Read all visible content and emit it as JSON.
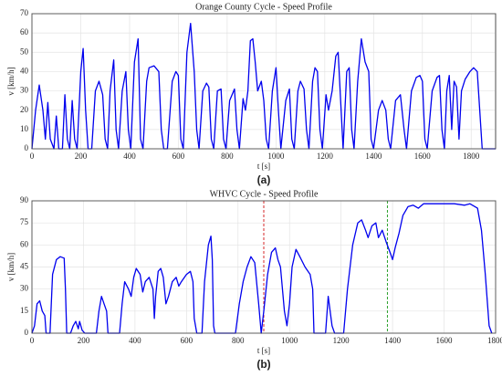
{
  "chart_data": [
    {
      "type": "line",
      "title": "Orange County Cycle - Speed Profile",
      "x_label": "t [s]",
      "y_label": "v [km/h]",
      "caption": "(a)",
      "xlim": [
        0,
        1900
      ],
      "xticks": [
        0,
        200,
        400,
        600,
        800,
        1000,
        1200,
        1400,
        1600,
        1800
      ],
      "ylim": [
        0,
        70
      ],
      "yticks": [
        0,
        10,
        20,
        30,
        40,
        50,
        60,
        70
      ],
      "grid": true,
      "x": [
        0,
        15,
        30,
        45,
        55,
        65,
        75,
        90,
        100,
        110,
        125,
        135,
        145,
        155,
        165,
        175,
        185,
        200,
        210,
        220,
        230,
        245,
        260,
        275,
        290,
        300,
        310,
        320,
        335,
        345,
        355,
        370,
        385,
        395,
        405,
        420,
        435,
        445,
        455,
        470,
        480,
        500,
        520,
        530,
        540,
        555,
        575,
        590,
        600,
        610,
        620,
        635,
        650,
        665,
        675,
        685,
        700,
        715,
        725,
        735,
        745,
        760,
        775,
        785,
        795,
        810,
        830,
        840,
        850,
        865,
        875,
        885,
        895,
        905,
        915,
        925,
        940,
        950,
        960,
        970,
        985,
        1000,
        1010,
        1020,
        1040,
        1055,
        1065,
        1075,
        1090,
        1100,
        1115,
        1125,
        1135,
        1150,
        1160,
        1170,
        1180,
        1190,
        1205,
        1215,
        1230,
        1245,
        1255,
        1265,
        1275,
        1290,
        1300,
        1310,
        1320,
        1335,
        1350,
        1365,
        1380,
        1390,
        1400,
        1420,
        1435,
        1450,
        1460,
        1470,
        1490,
        1510,
        1525,
        1535,
        1555,
        1575,
        1590,
        1600,
        1610,
        1620,
        1640,
        1660,
        1670,
        1680,
        1690,
        1700,
        1710,
        1720,
        1730,
        1740,
        1750,
        1760,
        1775,
        1795,
        1810,
        1825,
        1835,
        1845,
        1900
      ],
      "series": [
        {
          "name": "Orange County",
          "color": "#0000ee",
          "values": [
            0,
            20,
            33,
            20,
            5,
            24,
            5,
            0,
            17,
            0,
            0,
            28,
            5,
            0,
            25,
            5,
            0,
            40,
            52,
            20,
            0,
            0,
            30,
            35,
            28,
            5,
            0,
            30,
            46,
            10,
            0,
            30,
            40,
            10,
            0,
            45,
            57,
            5,
            0,
            35,
            42,
            43,
            40,
            10,
            0,
            0,
            35,
            40,
            38,
            5,
            0,
            50,
            65,
            40,
            10,
            0,
            30,
            34,
            32,
            5,
            0,
            30,
            31,
            5,
            0,
            25,
            31,
            10,
            0,
            26,
            20,
            30,
            56,
            57,
            45,
            30,
            35,
            25,
            5,
            0,
            30,
            42,
            20,
            0,
            25,
            31,
            5,
            0,
            30,
            35,
            31,
            10,
            0,
            35,
            42,
            40,
            10,
            0,
            28,
            20,
            30,
            48,
            50,
            25,
            0,
            40,
            42,
            10,
            0,
            35,
            57,
            45,
            40,
            5,
            0,
            20,
            25,
            20,
            5,
            0,
            25,
            28,
            10,
            0,
            30,
            37,
            38,
            35,
            5,
            0,
            30,
            37,
            38,
            10,
            0,
            30,
            38,
            10,
            35,
            32,
            5,
            30,
            36,
            40,
            42,
            40,
            20,
            0,
            0
          ]
        }
      ]
    },
    {
      "type": "line",
      "title": "WHVC Cycle - Speed Profile",
      "x_label": "t [s]",
      "y_label": "v [km/h]",
      "caption": "(b)",
      "xlim": [
        0,
        1800
      ],
      "xticks": [
        0,
        200,
        400,
        600,
        800,
        1000,
        1200,
        1400,
        1600,
        1800
      ],
      "ylim": [
        0,
        90
      ],
      "yticks": [
        0,
        15,
        30,
        45,
        60,
        75,
        90
      ],
      "grid": true,
      "vlines": [
        {
          "x": 900,
          "color": "#d62728"
        },
        {
          "x": 1380,
          "color": "#2ca02c"
        }
      ],
      "x": [
        0,
        10,
        20,
        30,
        40,
        50,
        55,
        70,
        80,
        95,
        110,
        125,
        130,
        135,
        150,
        160,
        170,
        180,
        185,
        195,
        205,
        250,
        260,
        270,
        280,
        290,
        295,
        340,
        350,
        360,
        375,
        385,
        395,
        405,
        420,
        430,
        440,
        455,
        470,
        475,
        480,
        490,
        500,
        510,
        520,
        530,
        545,
        560,
        570,
        580,
        600,
        615,
        625,
        630,
        640,
        660,
        670,
        685,
        695,
        700,
        705,
        710,
        790,
        805,
        820,
        835,
        850,
        865,
        880,
        890,
        900,
        915,
        930,
        945,
        955,
        965,
        980,
        990,
        1000,
        1010,
        1025,
        1040,
        1060,
        1080,
        1090,
        1095,
        1140,
        1150,
        1165,
        1175,
        1210,
        1225,
        1245,
        1265,
        1280,
        1295,
        1305,
        1320,
        1335,
        1345,
        1360,
        1375,
        1390,
        1400,
        1410,
        1425,
        1440,
        1460,
        1480,
        1500,
        1520,
        1560,
        1600,
        1640,
        1680,
        1700,
        1730,
        1745,
        1760,
        1775,
        1785
      ],
      "series": [
        {
          "name": "WHVC",
          "color": "#0000ee",
          "values": [
            0,
            5,
            20,
            22,
            15,
            12,
            0,
            0,
            40,
            50,
            52,
            51,
            30,
            0,
            0,
            5,
            8,
            3,
            8,
            2,
            0,
            0,
            15,
            25,
            20,
            15,
            0,
            0,
            20,
            35,
            30,
            25,
            38,
            44,
            40,
            28,
            35,
            38,
            30,
            10,
            25,
            42,
            44,
            38,
            20,
            25,
            35,
            38,
            32,
            35,
            40,
            42,
            35,
            10,
            0,
            0,
            35,
            60,
            66,
            50,
            5,
            0,
            0,
            20,
            35,
            45,
            52,
            48,
            20,
            0,
            15,
            40,
            55,
            58,
            50,
            45,
            15,
            5,
            20,
            45,
            57,
            52,
            45,
            40,
            30,
            0,
            0,
            25,
            5,
            0,
            0,
            30,
            60,
            75,
            77,
            70,
            65,
            73,
            75,
            65,
            70,
            62,
            55,
            50,
            58,
            68,
            80,
            86,
            87,
            85,
            88,
            88,
            88,
            88,
            87,
            88,
            85,
            70,
            40,
            5,
            0
          ]
        }
      ]
    }
  ]
}
